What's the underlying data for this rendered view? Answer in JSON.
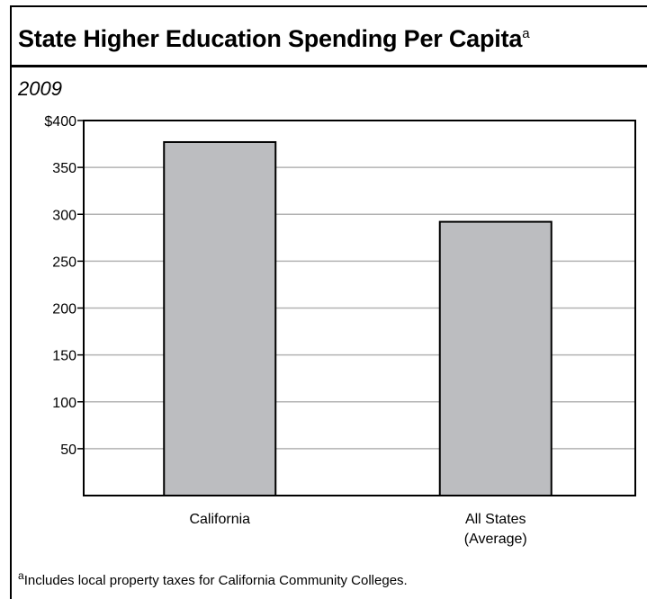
{
  "title": "State Higher Education Spending Per Capita",
  "title_footnote_marker": "a",
  "subtitle": "2009",
  "footnote_marker": "a",
  "footnote": "Includes local property taxes for California Community Colleges.",
  "colors": {
    "bar": "#bcbdc0",
    "grid": "#b3b3b3",
    "axis": "#000000"
  },
  "chart_data": {
    "type": "bar",
    "categories": [
      {
        "lines": [
          "California"
        ]
      },
      {
        "lines": [
          "All States",
          "(Average)"
        ]
      }
    ],
    "values": [
      377,
      292
    ],
    "ylim": [
      0,
      400
    ],
    "yticks": [
      {
        "value": 50,
        "label": "50"
      },
      {
        "value": 100,
        "label": "100"
      },
      {
        "value": 150,
        "label": "150"
      },
      {
        "value": 200,
        "label": "200"
      },
      {
        "value": 250,
        "label": "250"
      },
      {
        "value": 300,
        "label": "300"
      },
      {
        "value": 350,
        "label": "350"
      },
      {
        "value": 400,
        "label": "$400"
      }
    ],
    "grid": true
  }
}
